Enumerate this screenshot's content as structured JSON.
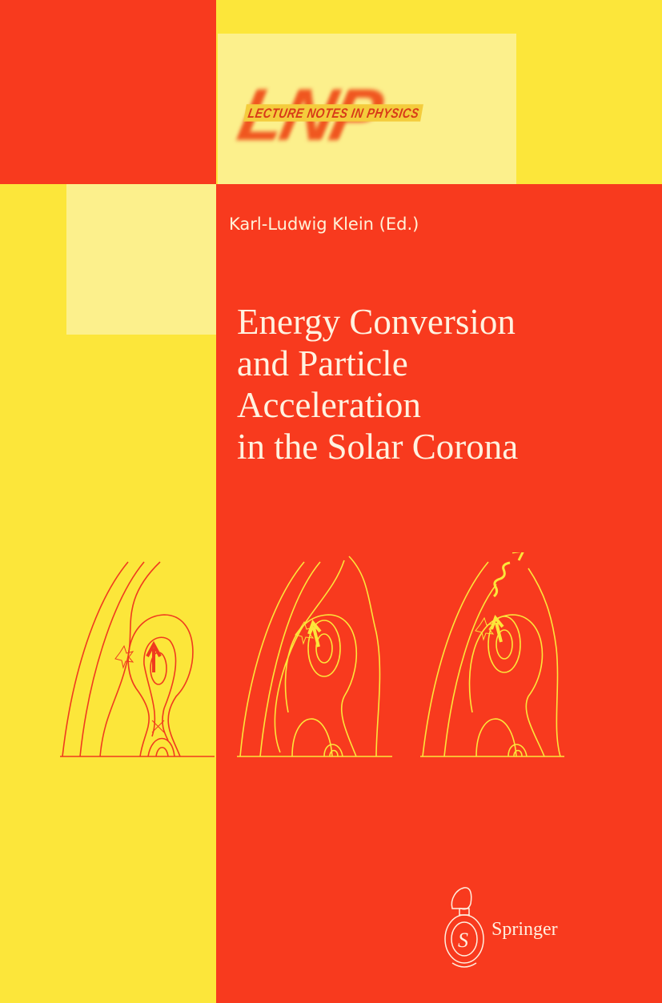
{
  "colors": {
    "red": "#f83a1e",
    "yellow": "#fce63a",
    "pale": "#fcf08c"
  },
  "series_logo": {
    "letters": "LNP",
    "band_text": "LECTURE NOTES IN PHYSICS"
  },
  "author": "Karl-Ludwig Klein (Ed.)",
  "title_lines": [
    "Energy Conversion",
    "and Particle",
    "Acceleration",
    "in the Solar Corona"
  ],
  "publisher": "Springer",
  "illustration": {
    "panels": 3,
    "description_icons": [
      "magnetic-field-lines-icon",
      "arrow-icon",
      "reconnection-star-icon"
    ]
  }
}
